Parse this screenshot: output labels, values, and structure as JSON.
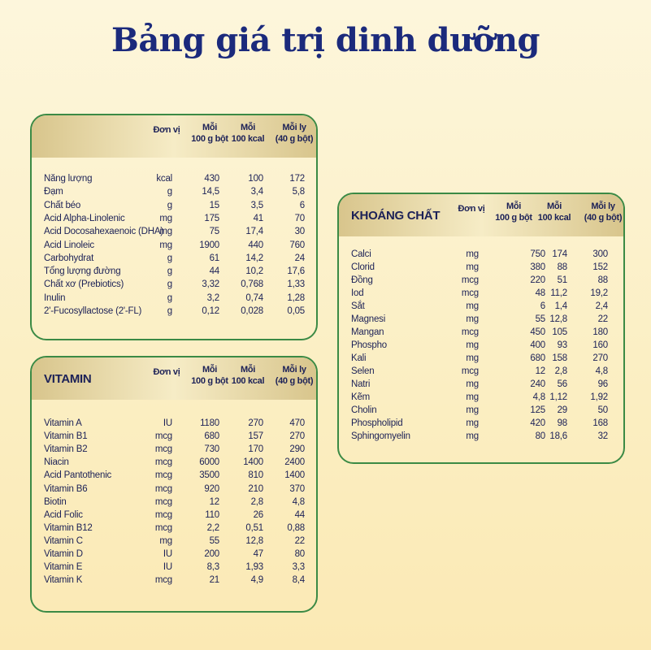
{
  "title": "Bảng giá trị dinh dưỡng",
  "panels": [
    {
      "title": null,
      "headers": [
        [
          "Đơn vị"
        ],
        [
          "Mỗi",
          "100 g bột"
        ],
        [
          "Mỗi",
          "100 kcal"
        ],
        [
          "Mỗi ly",
          "(40 g bột)"
        ]
      ],
      "rows": [
        [
          "Năng lượng",
          "kcal",
          "430",
          "100",
          "172"
        ],
        [
          "Đạm",
          "g",
          "14,5",
          "3,4",
          "5,8"
        ],
        [
          "Chất béo",
          "g",
          "15",
          "3,5",
          "6"
        ],
        [
          "Acid Alpha-Linolenic",
          "mg",
          "175",
          "41",
          "70"
        ],
        [
          "Acid Docosahexaenoic (DHA)",
          "mg",
          "75",
          "17,4",
          "30"
        ],
        [
          "Acid Linoleic",
          "mg",
          "1900",
          "440",
          "760"
        ],
        [
          "Carbohydrat",
          "g",
          "61",
          "14,2",
          "24"
        ],
        [
          "Tổng lượng đường",
          "g",
          "44",
          "10,2",
          "17,6"
        ],
        [
          "Chất xơ (Prebiotics)",
          "g",
          "3,32",
          "0,768",
          "1,33"
        ],
        [
          "Inulin",
          "g",
          "3,2",
          "0,74",
          "1,28"
        ],
        [
          "2'-Fucosyllactose (2'-FL)",
          "g",
          "0,12",
          "0,028",
          "0,05"
        ]
      ]
    },
    {
      "title": "VITAMIN",
      "headers": [
        [
          "Đơn vị"
        ],
        [
          "Mỗi",
          "100 g bột"
        ],
        [
          "Mỗi",
          "100 kcal"
        ],
        [
          "Mỗi ly",
          "(40 g bột)"
        ]
      ],
      "rows": [
        [
          "Vitamin A",
          "IU",
          "1180",
          "270",
          "470"
        ],
        [
          "Vitamin B1",
          "mcg",
          "680",
          "157",
          "270"
        ],
        [
          "Vitamin B2",
          "mcg",
          "730",
          "170",
          "290"
        ],
        [
          "Niacin",
          "mcg",
          "6000",
          "1400",
          "2400"
        ],
        [
          "Acid Pantothenic",
          "mcg",
          "3500",
          "810",
          "1400"
        ],
        [
          "Vitamin B6",
          "mcg",
          "920",
          "210",
          "370"
        ],
        [
          "Biotin",
          "mcg",
          "12",
          "2,8",
          "4,8"
        ],
        [
          "Acid Folic",
          "mcg",
          "110",
          "26",
          "44"
        ],
        [
          "Vitamin B12",
          "mcg",
          "2,2",
          "0,51",
          "0,88"
        ],
        [
          "Vitamin C",
          "mg",
          "55",
          "12,8",
          "22"
        ],
        [
          "Vitamin D",
          "IU",
          "200",
          "47",
          "80"
        ],
        [
          "Vitamin E",
          "IU",
          "8,3",
          "1,93",
          "3,3"
        ],
        [
          "Vitamin K",
          "mcg",
          "21",
          "4,9",
          "8,4"
        ]
      ]
    },
    {
      "title": "KHOÁNG CHẤT",
      "headers": [
        [
          "Đơn vị"
        ],
        [
          "Mỗi",
          "100 g bột"
        ],
        [
          "Mỗi",
          "100 kcal"
        ],
        [
          "Mỗi ly",
          "(40 g bột)"
        ]
      ],
      "rows": [
        [
          "Calci",
          "mg",
          "750",
          "174",
          "300"
        ],
        [
          "Clorid",
          "mg",
          "380",
          "88",
          "152"
        ],
        [
          "Đồng",
          "mcg",
          "220",
          "51",
          "88"
        ],
        [
          "Iod",
          "mcg",
          "48",
          "11,2",
          "19,2"
        ],
        [
          "Sắt",
          "mg",
          "6",
          "1,4",
          "2,4"
        ],
        [
          "Magnesi",
          "mg",
          "55",
          "12,8",
          "22"
        ],
        [
          "Mangan",
          "mcg",
          "450",
          "105",
          "180"
        ],
        [
          "Phospho",
          "mg",
          "400",
          "93",
          "160"
        ],
        [
          "Kali",
          "mg",
          "680",
          "158",
          "270"
        ],
        [
          "Selen",
          "mcg",
          "12",
          "2,8",
          "4,8"
        ],
        [
          "Natri",
          "mg",
          "240",
          "56",
          "96"
        ],
        [
          "Kẽm",
          "mg",
          "4,8",
          "1,12",
          "1,92"
        ],
        [
          "Cholin",
          "mg",
          "125",
          "29",
          "50"
        ],
        [
          "Phospholipid",
          "mg",
          "420",
          "98",
          "168"
        ],
        [
          "Sphingomyelin",
          "mg",
          "80",
          "18,6",
          "32"
        ]
      ]
    }
  ]
}
